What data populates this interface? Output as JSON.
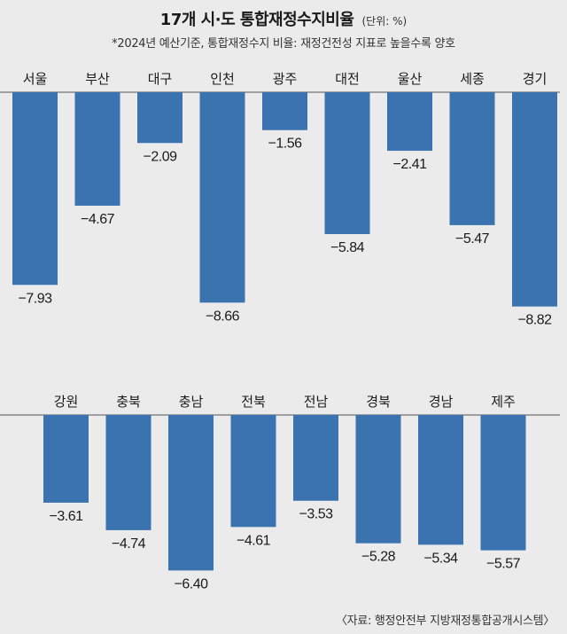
{
  "header": {
    "title": "17개 시·도 통합재정수지비율",
    "unit": "(단위: %)",
    "subtitle": "*2024년 예산기준, 통합재정수지 비율: 재정건전성 지표로 높을수록 양호"
  },
  "footer": {
    "source": "〈자료: 행정안전부 지방재정통합공개시스템〉"
  },
  "colors": {
    "bar": "#3b72b0",
    "background": "#ecebeb",
    "axis": "#555555"
  },
  "chart_data": [
    {
      "type": "bar",
      "categories": [
        "서울",
        "부산",
        "대구",
        "인천",
        "광주",
        "대전",
        "울산",
        "세종",
        "경기"
      ],
      "values": [
        -7.93,
        -4.67,
        -2.09,
        -8.66,
        -1.56,
        -5.84,
        -2.41,
        -5.47,
        -8.82
      ],
      "labels": [
        "−7.93",
        "−4.67",
        "−2.09",
        "−8.66",
        "−1.56",
        "−5.84",
        "−2.41",
        "−5.47",
        "−8.82"
      ],
      "ylim": [
        -10,
        0
      ],
      "grid": false,
      "legend": "none"
    },
    {
      "type": "bar",
      "categories": [
        "강원",
        "충북",
        "충남",
        "전북",
        "전남",
        "경북",
        "경남",
        "제주"
      ],
      "values": [
        -3.61,
        -4.74,
        -6.4,
        -4.61,
        -3.53,
        -5.28,
        -5.34,
        -5.57
      ],
      "labels": [
        "−3.61",
        "−4.74",
        "−6.40",
        "−4.61",
        "−3.53",
        "−5.28",
        "−5.34",
        "−5.57"
      ],
      "ylim": [
        -10,
        0
      ],
      "grid": false,
      "legend": "none"
    }
  ]
}
